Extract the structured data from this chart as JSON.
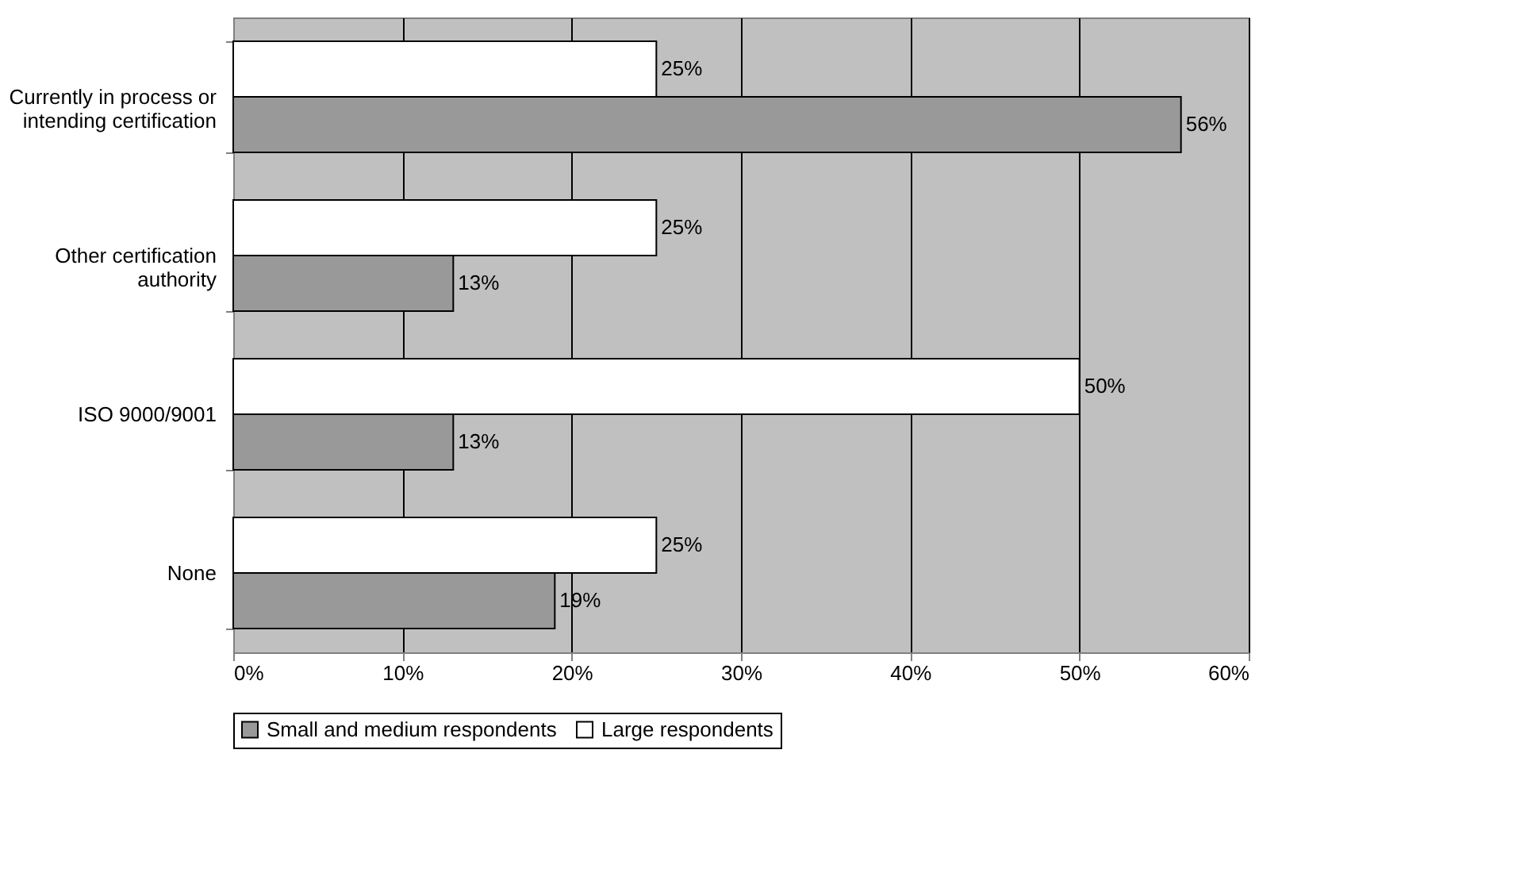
{
  "chart_data": {
    "type": "bar",
    "orientation": "horizontal",
    "categories": [
      "Currently in process or\nintending certification",
      "Other certification\nauthority",
      "ISO 9000/9001",
      "None"
    ],
    "series": [
      {
        "name": "Small and medium respondents",
        "color": "#999999",
        "values": [
          56,
          13,
          13,
          19
        ],
        "value_labels": [
          "56%",
          "13%",
          "13%",
          "19%"
        ]
      },
      {
        "name": "Large respondents",
        "color": "#ffffff",
        "values": [
          25,
          25,
          50,
          25
        ],
        "value_labels": [
          "25%",
          "25%",
          "50%",
          "25%"
        ]
      }
    ],
    "xlim": [
      0,
      60
    ],
    "xticks": [
      {
        "value": 0,
        "label": "0%"
      },
      {
        "value": 10,
        "label": "10%"
      },
      {
        "value": 20,
        "label": "20%"
      },
      {
        "value": 30,
        "label": "30%"
      },
      {
        "value": 40,
        "label": "40%"
      },
      {
        "value": 50,
        "label": "50%"
      },
      {
        "value": 60,
        "label": "60%"
      }
    ],
    "grid": "x",
    "legend": "bottom"
  }
}
